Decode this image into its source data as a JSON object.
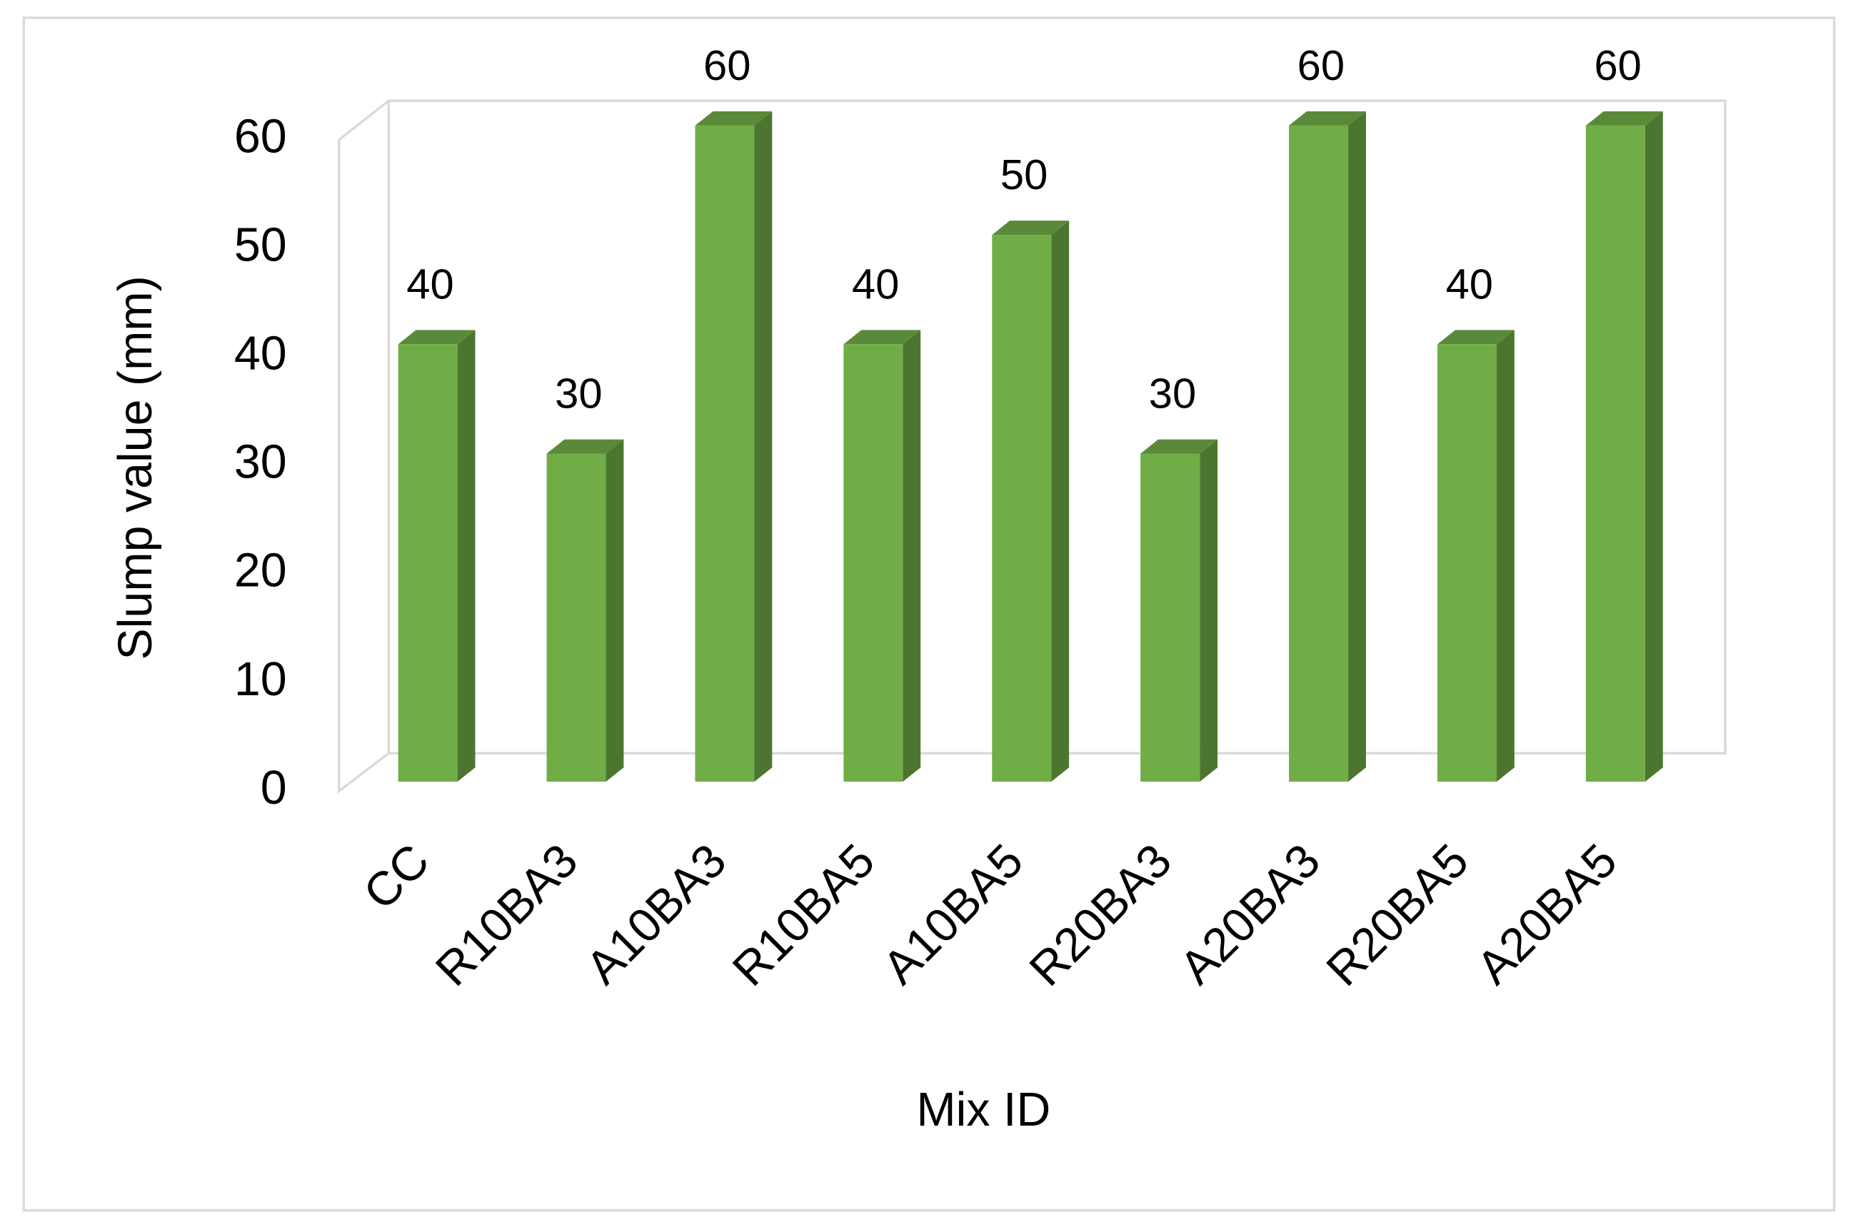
{
  "chart_data": {
    "type": "bar3d",
    "x_label": "Mix ID",
    "y_label": "Slump value (mm)",
    "categories": [
      "CC",
      "R10BA3",
      "A10BA3",
      "R10BA5",
      "A10BA5",
      "R20BA3",
      "A20BA3",
      "R20BA5",
      "A20BA5"
    ],
    "values": [
      40,
      30,
      60,
      40,
      50,
      30,
      60,
      40,
      60
    ],
    "color": "#70ad47",
    "ylim": [
      0,
      60
    ],
    "yticks": [
      0,
      10,
      20,
      30,
      40,
      50,
      60
    ],
    "grid": false
  }
}
